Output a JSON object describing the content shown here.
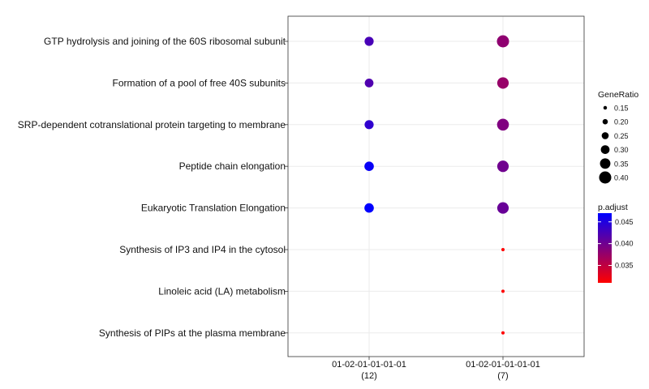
{
  "chart_data": {
    "type": "scatter",
    "title": "",
    "xlabel": "",
    "ylabel": "",
    "x_categories": [
      {
        "line1": "01-02-01-01-01-01",
        "line2": "(12)"
      },
      {
        "line1": "01-02-01-01-01-01",
        "line2": "(7)"
      }
    ],
    "y_categories": [
      "GTP hydrolysis and joining of the 60S ribosomal subunit",
      "Formation of a pool of free 40S subunits",
      "SRP-dependent cotranslational protein targeting to membrane",
      "Peptide chain elongation",
      "Eukaryotic Translation Elongation",
      "Synthesis of IP3 and IP4 in the cytosol",
      "Linoleic acid (LA) metabolism",
      "Synthesis of PIPs at the plasma membrane"
    ],
    "points": [
      {
        "x": 0,
        "y": 0,
        "gene_ratio": 0.31,
        "p_adjust": 0.0425
      },
      {
        "x": 0,
        "y": 1,
        "gene_ratio": 0.3,
        "p_adjust": 0.042
      },
      {
        "x": 0,
        "y": 2,
        "gene_ratio": 0.31,
        "p_adjust": 0.044
      },
      {
        "x": 0,
        "y": 3,
        "gene_ratio": 0.32,
        "p_adjust": 0.0465
      },
      {
        "x": 0,
        "y": 4,
        "gene_ratio": 0.32,
        "p_adjust": 0.047
      },
      {
        "x": 1,
        "y": 0,
        "gene_ratio": 0.4,
        "p_adjust": 0.038
      },
      {
        "x": 1,
        "y": 1,
        "gene_ratio": 0.38,
        "p_adjust": 0.0375
      },
      {
        "x": 1,
        "y": 2,
        "gene_ratio": 0.39,
        "p_adjust": 0.039
      },
      {
        "x": 1,
        "y": 3,
        "gene_ratio": 0.38,
        "p_adjust": 0.04
      },
      {
        "x": 1,
        "y": 4,
        "gene_ratio": 0.38,
        "p_adjust": 0.0405
      },
      {
        "x": 1,
        "y": 5,
        "gene_ratio": 0.14,
        "p_adjust": 0.031
      },
      {
        "x": 1,
        "y": 6,
        "gene_ratio": 0.14,
        "p_adjust": 0.031
      },
      {
        "x": 1,
        "y": 7,
        "gene_ratio": 0.14,
        "p_adjust": 0.031
      }
    ],
    "size_legend": {
      "title": "GeneRatio",
      "values": [
        0.15,
        0.2,
        0.25,
        0.3,
        0.35,
        0.4
      ],
      "labels": [
        "0.15",
        "0.20",
        "0.25",
        "0.30",
        "0.35",
        "0.40"
      ],
      "range": [
        0.14,
        0.4
      ]
    },
    "color_legend": {
      "title": "p.adjust",
      "labels": [
        "0.045",
        "0.040",
        "0.035"
      ],
      "ticks": [
        0.045,
        0.04,
        0.035
      ],
      "range": [
        0.031,
        0.047
      ],
      "low_color": "#ff0000",
      "high_color": "#0000ff"
    },
    "grid": true,
    "legend_position": "right"
  }
}
